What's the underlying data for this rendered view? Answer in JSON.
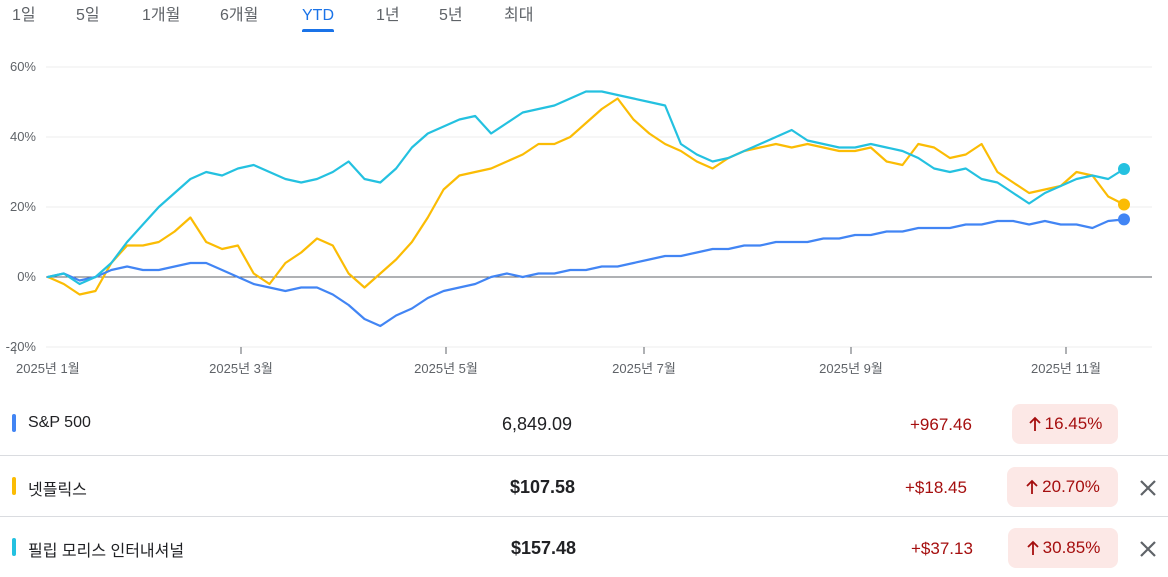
{
  "tabs": [
    {
      "label": "1일",
      "active": false
    },
    {
      "label": "5일",
      "active": false
    },
    {
      "label": "1개월",
      "active": false
    },
    {
      "label": "6개월",
      "active": false
    },
    {
      "label": "YTD",
      "active": true
    },
    {
      "label": "1년",
      "active": false
    },
    {
      "label": "5년",
      "active": false
    },
    {
      "label": "최대",
      "active": false
    }
  ],
  "chart_data": {
    "type": "line",
    "ylim": [
      -20,
      60
    ],
    "y_ticks": [
      "60%",
      "40%",
      "20%",
      "0%",
      "-20%"
    ],
    "x_ticks": [
      "2025년 1월",
      "2025년 3월",
      "2025년 5월",
      "2025년 7월",
      "2025년 9월",
      "2025년 11월"
    ],
    "grid": true,
    "baseline": 0,
    "series": [
      {
        "name": "S&P 500",
        "color": "#4285f4",
        "values": [
          0,
          1,
          -1,
          0,
          2,
          3,
          2,
          2,
          3,
          4,
          4,
          2,
          0,
          -2,
          -3,
          -4,
          -3,
          -3,
          -5,
          -8,
          -12,
          -14,
          -11,
          -9,
          -6,
          -4,
          -3,
          -2,
          0,
          1,
          0,
          1,
          1,
          2,
          2,
          3,
          3,
          4,
          5,
          6,
          6,
          7,
          8,
          8,
          9,
          9,
          10,
          10,
          10,
          11,
          11,
          12,
          12,
          13,
          13,
          14,
          14,
          14,
          15,
          15,
          16,
          16,
          15,
          16,
          15,
          15,
          14,
          16,
          16.45
        ]
      },
      {
        "name": "넷플릭스",
        "color": "#fbbc04",
        "values": [
          0,
          -2,
          -5,
          -4,
          4,
          9,
          9,
          10,
          13,
          17,
          10,
          8,
          9,
          1,
          -2,
          4,
          7,
          11,
          9,
          1,
          -3,
          1,
          5,
          10,
          17,
          25,
          29,
          30,
          31,
          33,
          35,
          38,
          38,
          40,
          44,
          48,
          51,
          45,
          41,
          38,
          36,
          33,
          31,
          34,
          36,
          37,
          38,
          37,
          38,
          37,
          36,
          36,
          37,
          33,
          32,
          38,
          37,
          34,
          35,
          38,
          30,
          27,
          24,
          25,
          26,
          30,
          29,
          23,
          20.7
        ]
      },
      {
        "name": "필립 모리스 인터내셔널",
        "color": "#24c1e0",
        "values": [
          0,
          1,
          -2,
          0,
          4,
          10,
          15,
          20,
          24,
          28,
          30,
          29,
          31,
          32,
          30,
          28,
          27,
          28,
          30,
          33,
          28,
          27,
          31,
          37,
          41,
          43,
          45,
          46,
          41,
          44,
          47,
          48,
          49,
          51,
          53,
          53,
          52,
          51,
          50,
          49,
          38,
          35,
          33,
          34,
          36,
          38,
          40,
          42,
          39,
          38,
          37,
          37,
          38,
          37,
          36,
          34,
          31,
          30,
          31,
          28,
          27,
          24,
          21,
          24,
          26,
          28,
          29,
          28,
          30.85
        ]
      }
    ]
  },
  "rows": [
    {
      "name": "S&P 500",
      "price": "6,849.09",
      "change": "+967.46",
      "percent": "16.45%",
      "arrow": "arrow-up-icon",
      "color": "#4285f4",
      "removable": false
    },
    {
      "name": "넷플릭스",
      "price": "$107.58",
      "change": "+$18.45",
      "percent": "20.70%",
      "arrow": "arrow-up-icon",
      "color": "#fbbc04",
      "removable": true
    },
    {
      "name": "필립 모리스 인터내셔널",
      "price": "$157.48",
      "change": "+$37.13",
      "percent": "30.85%",
      "arrow": "arrow-up-icon",
      "color": "#24c1e0",
      "removable": true
    }
  ],
  "icons": {
    "remove": "close-icon"
  },
  "colors": {
    "accent": "#1a73e8",
    "gain": "#a50e0e",
    "gain_bg": "#fce8e6"
  }
}
